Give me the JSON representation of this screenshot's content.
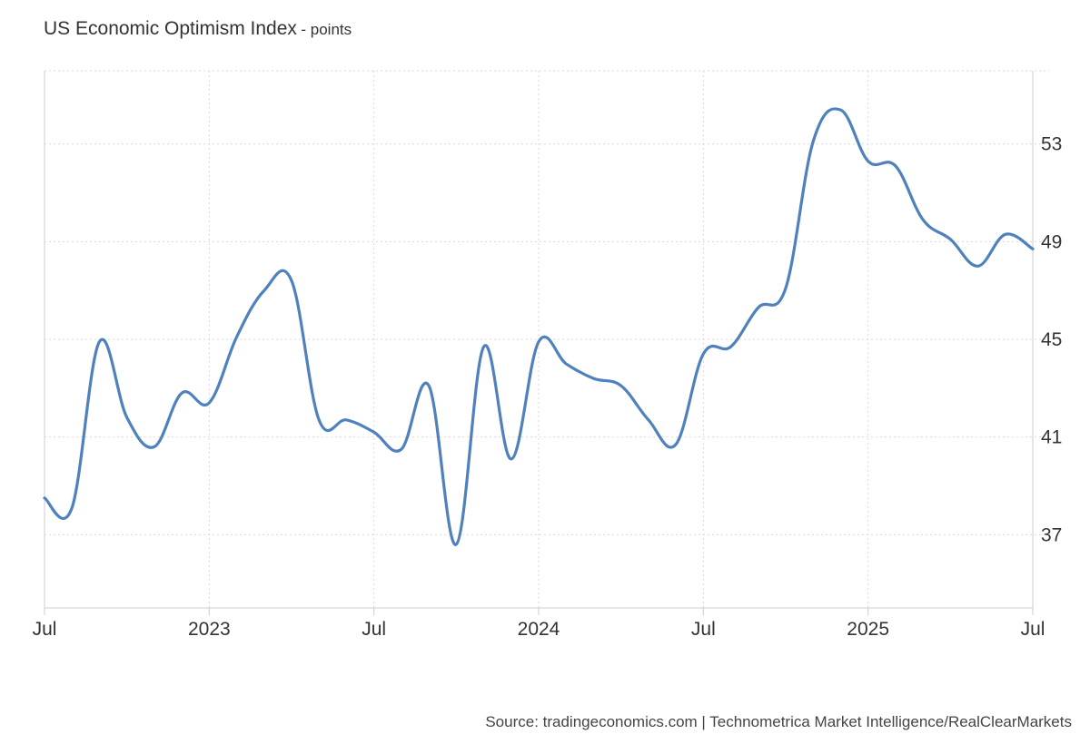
{
  "title": {
    "main": "US Economic Optimism Index",
    "unit": "- points"
  },
  "source": "Source: tradingeconomics.com | Technometrica Market Intelligence/RealClearMarkets",
  "colors": {
    "line": "#4f81bd",
    "grid": "#d9d9d9",
    "axis": "#cccccc",
    "text": "#333333"
  },
  "chart_data": {
    "type": "line",
    "title": "US Economic Optimism Index",
    "ylabel": "points",
    "xlabel": "",
    "xlim": [
      "2022-07",
      "2025-07"
    ],
    "ylim": [
      34,
      56
    ],
    "y_ticks": [
      37,
      41,
      45,
      49,
      53
    ],
    "x_ticks": [
      {
        "date": "2022-07",
        "label": "Jul"
      },
      {
        "date": "2023-01",
        "label": "2023"
      },
      {
        "date": "2023-07",
        "label": "Jul"
      },
      {
        "date": "2024-01",
        "label": "2024"
      },
      {
        "date": "2024-07",
        "label": "Jul"
      },
      {
        "date": "2025-01",
        "label": "2025"
      },
      {
        "date": "2025-07",
        "label": "Jul"
      }
    ],
    "grid": true,
    "series": [
      {
        "x": [
          "2022-07",
          "2022-08",
          "2022-09",
          "2022-10",
          "2022-11",
          "2022-12",
          "2023-01",
          "2023-02",
          "2023-03",
          "2023-04",
          "2023-05",
          "2023-06",
          "2023-07",
          "2023-08",
          "2023-09",
          "2023-10",
          "2023-11",
          "2023-12",
          "2024-01",
          "2024-02",
          "2024-03",
          "2024-04",
          "2024-05",
          "2024-06",
          "2024-07",
          "2024-08",
          "2024-09",
          "2024-10",
          "2024-11",
          "2024-12",
          "2025-01",
          "2025-02",
          "2025-03",
          "2025-04",
          "2025-05",
          "2025-06",
          "2025-07"
        ],
        "values": [
          38.5,
          38.1,
          44.9,
          41.8,
          40.6,
          42.8,
          42.4,
          45.1,
          47.0,
          47.4,
          41.7,
          41.7,
          41.2,
          40.5,
          43.1,
          36.6,
          44.7,
          40.1,
          44.9,
          44.0,
          43.4,
          43.1,
          41.7,
          40.7,
          44.4,
          44.7,
          46.3,
          47.1,
          53.1,
          54.4,
          52.3,
          52.1,
          49.9,
          49.1,
          48.0,
          49.3,
          48.7
        ]
      }
    ]
  }
}
